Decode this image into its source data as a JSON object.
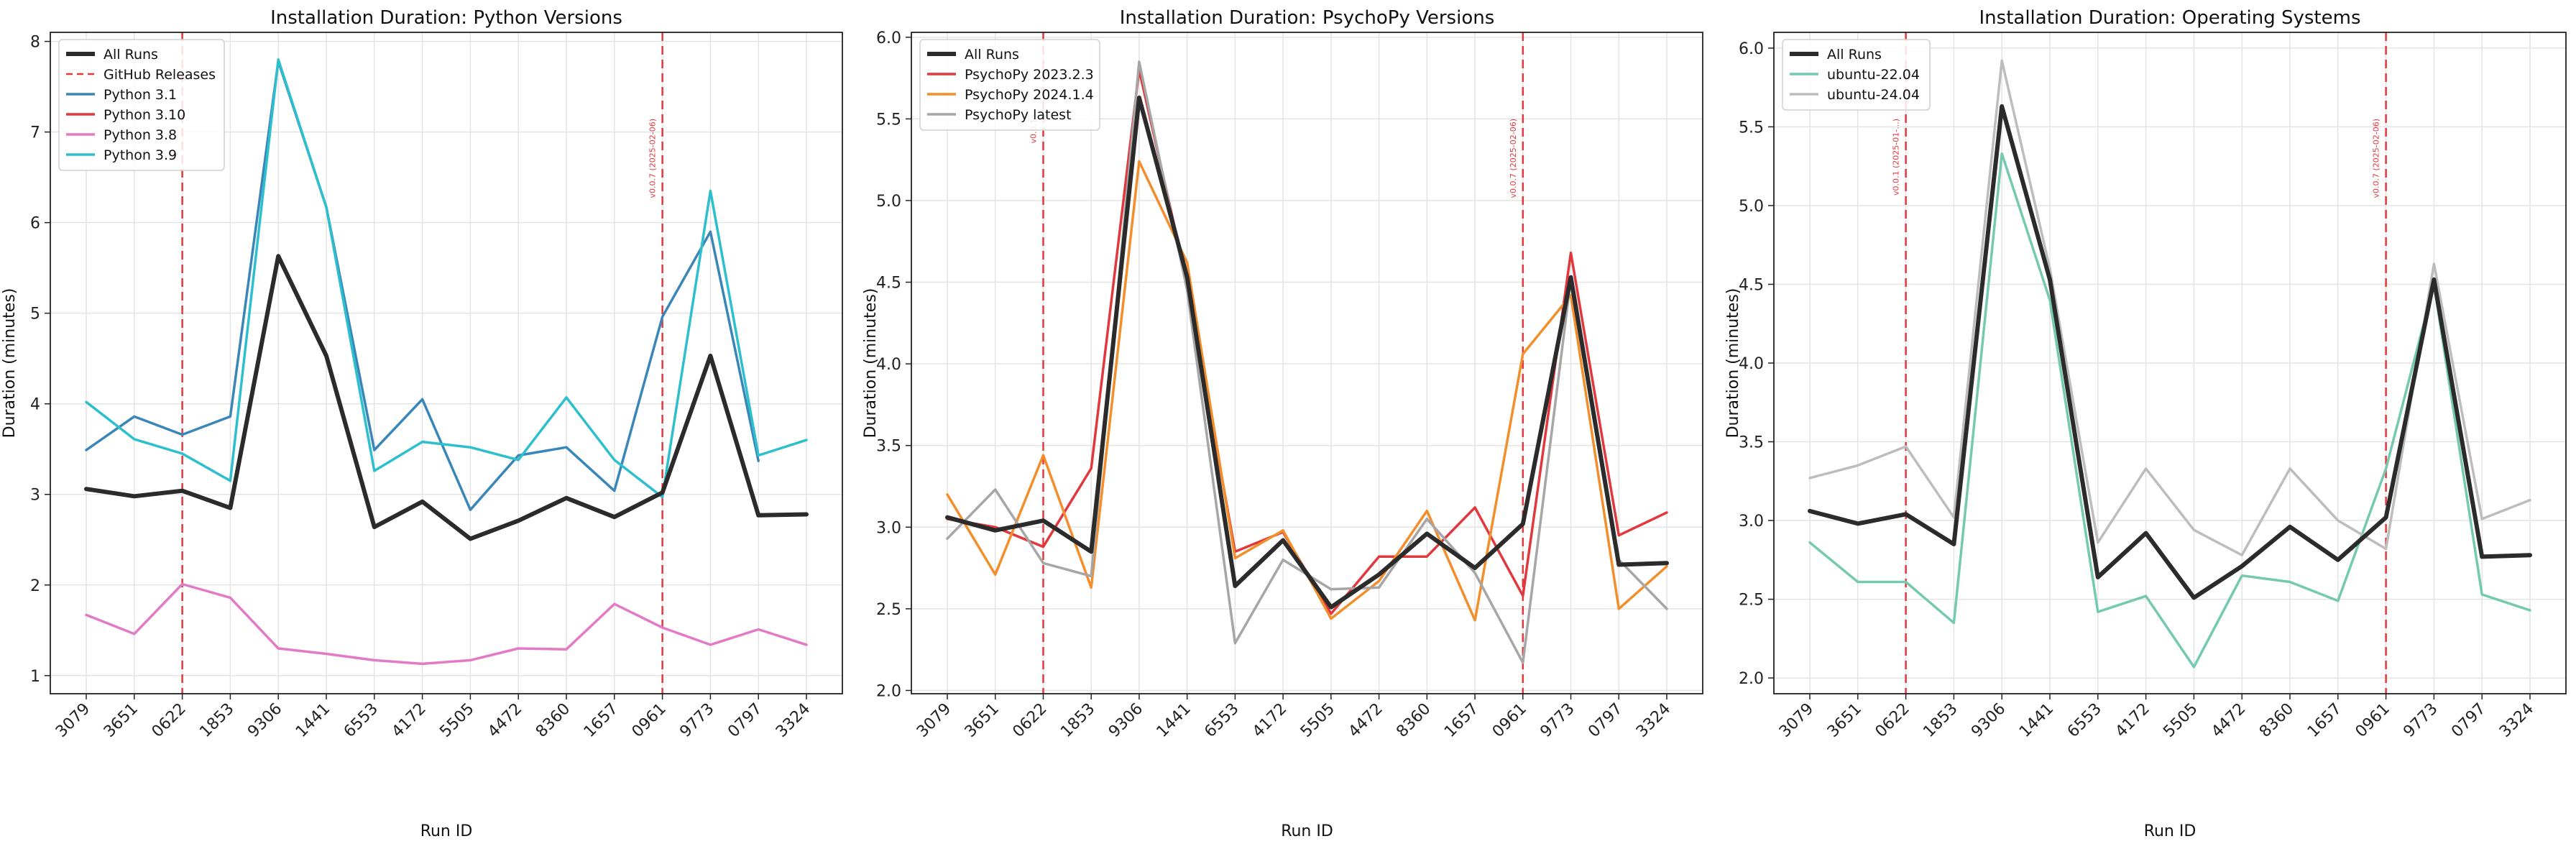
{
  "figure": {
    "xlabel": "Run ID",
    "ylabel": "Duration (minutes)"
  },
  "chart_data": [
    {
      "type": "line",
      "title": "Installation Duration: Python Versions",
      "xlabel": "Run ID",
      "ylabel": "Duration (minutes)",
      "ylim": [
        0.8,
        8.1
      ],
      "yticks": [
        1,
        2,
        3,
        4,
        5,
        6,
        7,
        8
      ],
      "grid": true,
      "legend_location": "top-left",
      "categories": [
        "3079",
        "3651",
        "0622",
        "1853",
        "9306",
        "1441",
        "6553",
        "4172",
        "5505",
        "4472",
        "8360",
        "1657",
        "0961",
        "9773",
        "0797",
        "3324"
      ],
      "series": [
        {
          "name": "All Runs",
          "color": "#2b2b2b",
          "width": 6,
          "values": [
            3.06,
            2.98,
            3.04,
            2.85,
            5.63,
            4.53,
            2.64,
            2.92,
            2.51,
            2.71,
            2.96,
            2.75,
            3.02,
            4.53,
            2.77,
            2.78
          ]
        },
        {
          "name": "Python 3.1",
          "color": "#3a86b8",
          "width": 3.5,
          "values": [
            3.49,
            3.86,
            3.66,
            3.86,
            7.78,
            6.17,
            3.49,
            4.05,
            2.83,
            3.43,
            3.52,
            3.04,
            4.96,
            5.9,
            3.37,
            null
          ]
        },
        {
          "name": "Python 3.10",
          "color": "#e0383d",
          "width": 3.5,
          "values": [
            null,
            null,
            null,
            null,
            null,
            null,
            null,
            null,
            null,
            null,
            null,
            null,
            null,
            null,
            null,
            null
          ]
        },
        {
          "name": "Python 3.8",
          "color": "#e27ac5",
          "width": 3.5,
          "values": [
            1.67,
            1.46,
            2.01,
            1.86,
            1.3,
            1.24,
            1.17,
            1.13,
            1.17,
            1.3,
            1.29,
            1.79,
            1.53,
            1.34,
            1.51,
            1.34
          ]
        },
        {
          "name": "Python 3.9",
          "color": "#2ebfcf",
          "width": 3.5,
          "values": [
            4.02,
            3.61,
            3.45,
            3.15,
            7.8,
            6.17,
            3.26,
            3.58,
            3.52,
            3.38,
            4.07,
            3.38,
            2.97,
            6.35,
            3.43,
            3.6
          ]
        }
      ],
      "reference_lines": [
        {
          "category_index": 2,
          "label": ""
        },
        {
          "category_index": 12,
          "label": "v0.0.7 (2025-02-06)"
        }
      ],
      "legend": [
        "All Runs",
        "GitHub Releases",
        "Python 3.1",
        "Python 3.10",
        "Python 3.8",
        "Python 3.9"
      ]
    },
    {
      "type": "line",
      "title": "Installation Duration: PsychoPy Versions",
      "xlabel": "Run ID",
      "ylabel": "Duration (minutes)",
      "ylim": [
        1.98,
        6.03
      ],
      "yticks": [
        2.0,
        2.5,
        3.0,
        3.5,
        4.0,
        4.5,
        5.0,
        5.5,
        6.0
      ],
      "grid": true,
      "legend_location": "top-left",
      "categories": [
        "3079",
        "3651",
        "0622",
        "1853",
        "9306",
        "1441",
        "6553",
        "4172",
        "5505",
        "4472",
        "8360",
        "1657",
        "0961",
        "9773",
        "0797",
        "3324"
      ],
      "series": [
        {
          "name": "All Runs",
          "color": "#2b2b2b",
          "width": 6,
          "values": [
            3.06,
            2.98,
            3.04,
            2.85,
            5.63,
            4.53,
            2.64,
            2.92,
            2.51,
            2.71,
            2.96,
            2.75,
            3.02,
            4.53,
            2.77,
            2.78
          ]
        },
        {
          "name": "PsychoPy 2023.2.3",
          "color": "#e0383d",
          "width": 3.5,
          "values": [
            3.05,
            3.0,
            2.88,
            3.36,
            5.8,
            4.5,
            2.85,
            2.97,
            2.47,
            2.82,
            2.82,
            3.12,
            2.58,
            4.68,
            2.95,
            3.09
          ]
        },
        {
          "name": "PsychoPy 2024.1.4",
          "color": "#f28e2b",
          "width": 3.5,
          "values": [
            3.2,
            2.71,
            3.44,
            2.63,
            5.24,
            4.62,
            2.81,
            2.98,
            2.44,
            2.67,
            3.1,
            2.43,
            4.06,
            4.42,
            2.5,
            2.76
          ]
        },
        {
          "name": "PsychoPy latest",
          "color": "#a6a6a6",
          "width": 3.5,
          "values": [
            2.93,
            3.23,
            2.78,
            2.7,
            5.85,
            4.45,
            2.29,
            2.8,
            2.62,
            2.63,
            3.05,
            2.72,
            2.17,
            4.52,
            2.8,
            2.5
          ]
        }
      ],
      "reference_lines": [
        {
          "category_index": 2,
          "label": "v0.0.1"
        },
        {
          "category_index": 12,
          "label": "v0.0.7 (2025-02-06)"
        }
      ],
      "legend": [
        "All Runs",
        "PsychoPy 2023.2.3",
        "PsychoPy 2024.1.4",
        "PsychoPy latest"
      ]
    },
    {
      "type": "line",
      "title": "Installation Duration: Operating Systems",
      "xlabel": "Run ID",
      "ylabel": "Duration (minutes)",
      "ylim": [
        1.9,
        6.1
      ],
      "yticks": [
        2.0,
        2.5,
        3.0,
        3.5,
        4.0,
        4.5,
        5.0,
        5.5,
        6.0
      ],
      "grid": true,
      "legend_location": "top-left",
      "categories": [
        "3079",
        "3651",
        "0622",
        "1853",
        "9306",
        "1441",
        "6553",
        "4172",
        "5505",
        "4472",
        "8360",
        "1657",
        "0961",
        "9773",
        "0797",
        "3324"
      ],
      "series": [
        {
          "name": "All Runs",
          "color": "#2b2b2b",
          "width": 6,
          "values": [
            3.06,
            2.98,
            3.04,
            2.85,
            5.63,
            4.53,
            2.64,
            2.92,
            2.51,
            2.71,
            2.96,
            2.75,
            3.02,
            4.53,
            2.77,
            2.78
          ]
        },
        {
          "name": "ubuntu-22.04",
          "color": "#74c9b0",
          "width": 3.5,
          "values": [
            2.86,
            2.61,
            2.61,
            2.35,
            5.33,
            4.4,
            2.42,
            2.52,
            2.07,
            2.65,
            2.61,
            2.49,
            3.33,
            4.5,
            2.53,
            2.43
          ]
        },
        {
          "name": "ubuntu-24.04",
          "color": "#bdbdbd",
          "width": 3.5,
          "values": [
            3.27,
            3.35,
            3.47,
            3.02,
            5.92,
            4.6,
            2.86,
            3.33,
            2.94,
            2.78,
            3.33,
            3.0,
            2.82,
            4.63,
            3.01,
            3.13
          ]
        }
      ],
      "reference_lines": [
        {
          "category_index": 2,
          "label": "v0.0.1 (2025-01-...)"
        },
        {
          "category_index": 12,
          "label": "v0.0.7 (2025-02-06)"
        }
      ],
      "legend": [
        "All Runs",
        "ubuntu-22.04",
        "ubuntu-24.04"
      ]
    }
  ]
}
